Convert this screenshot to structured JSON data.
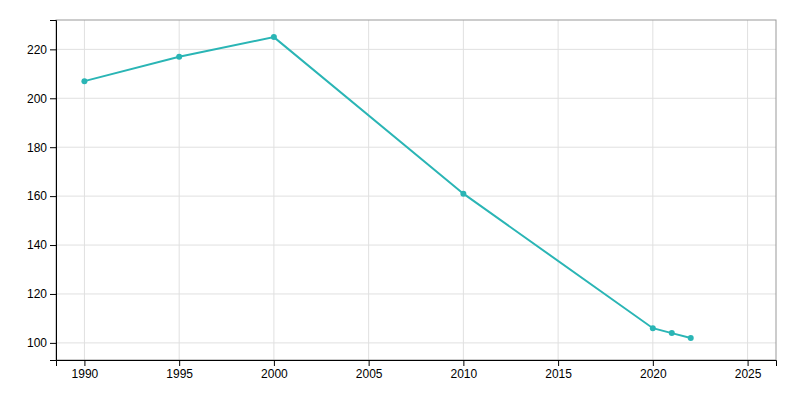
{
  "chart_data": {
    "type": "line",
    "x": [
      1990,
      1995,
      2000,
      2010,
      2020,
      2021,
      2022
    ],
    "values": [
      207,
      217,
      225,
      161,
      106,
      104,
      102
    ],
    "color": "#2ab5b5",
    "marker": "circle",
    "xlim": [
      1988.5,
      2026.5
    ],
    "ylim": [
      93,
      232
    ],
    "xticks": [
      1990,
      1995,
      2000,
      2005,
      2010,
      2015,
      2020,
      2025
    ],
    "yticks": [
      100,
      120,
      140,
      160,
      180,
      200,
      220
    ],
    "grid": true
  }
}
